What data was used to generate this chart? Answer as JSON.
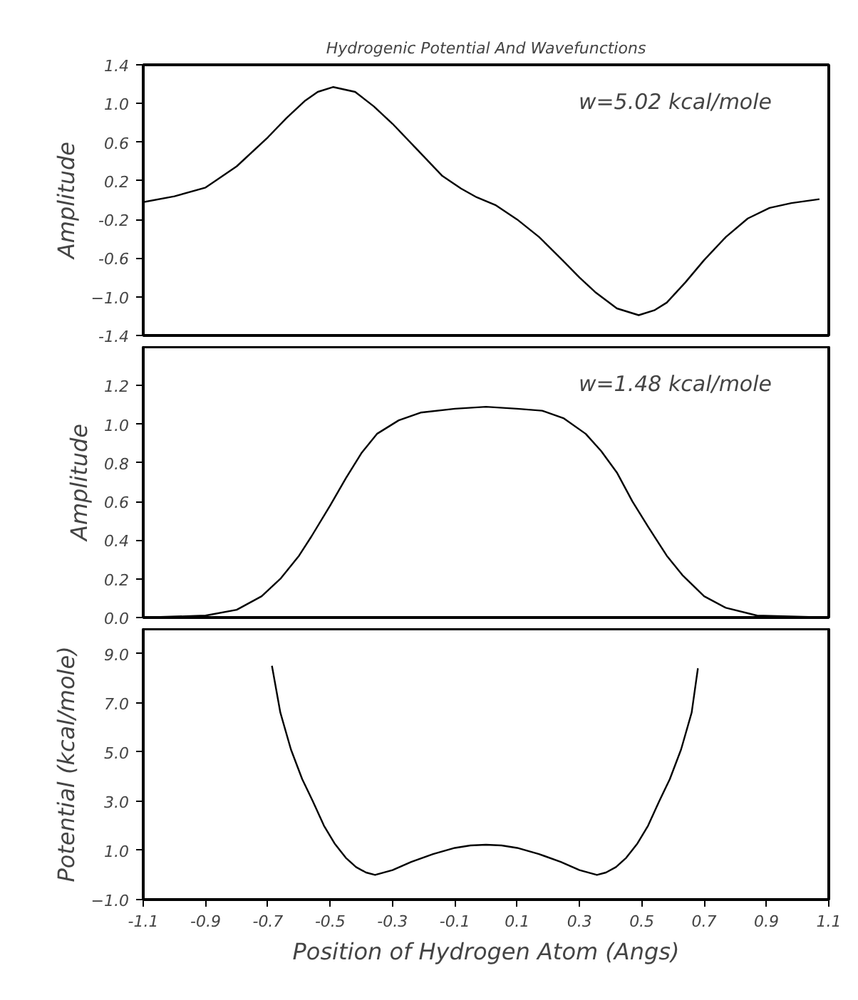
{
  "chart_data": [
    {
      "type": "line",
      "title": "Hydrogenic Potential And Wavefunctions",
      "ylabel": "Amplitude",
      "annotations": [
        "w=5.02 kcal/mole"
      ],
      "tick_labels": "y",
      "xlim": [
        -1.1,
        1.1
      ],
      "ylim": [
        -1.4,
        1.4
      ],
      "yticks": [
        -1.4,
        {
          "value": -1.0,
          "label": "−1.0"
        },
        -0.6,
        -0.2,
        0.2,
        0.6,
        {
          "value": 1.0,
          "label": "1.0"
        },
        1.4
      ],
      "x": [
        -1.1,
        -1.0,
        -0.9,
        -0.8,
        -0.7,
        -0.64,
        -0.58,
        -0.54,
        -0.49,
        -0.42,
        -0.36,
        -0.3,
        -0.22,
        -0.14,
        -0.08,
        -0.03,
        0.03,
        0.1,
        0.17,
        0.245,
        0.3,
        0.35,
        0.42,
        0.49,
        0.54,
        0.58,
        0.64,
        0.7,
        0.77,
        0.84,
        0.91,
        0.98,
        1.07
      ],
      "values": [
        -0.02,
        0.04,
        0.13,
        0.35,
        0.65,
        0.85,
        1.03,
        1.12,
        1.17,
        1.12,
        0.97,
        0.79,
        0.52,
        0.25,
        0.12,
        0.03,
        -0.05,
        -0.2,
        -0.38,
        -0.62,
        -0.8,
        -0.95,
        -1.12,
        -1.19,
        -1.14,
        -1.06,
        -0.85,
        -0.62,
        -0.38,
        -0.19,
        -0.08,
        -0.03,
        0.01
      ]
    },
    {
      "type": "line",
      "ylabel": "Amplitude",
      "annotations": [
        "w=1.48 kcal/mole"
      ],
      "tick_labels": "y",
      "xlim": [
        -1.1,
        1.1
      ],
      "ylim": [
        0.0,
        1.4
      ],
      "yticks": [
        {
          "value": 0.0,
          "label": "0.0"
        },
        0.2,
        0.4,
        0.6,
        0.8,
        {
          "value": 1.0,
          "label": "1.0"
        },
        1.2
      ],
      "x": [
        -1.1,
        -0.9,
        -0.8,
        -0.72,
        -0.66,
        -0.6,
        -0.56,
        -0.5,
        -0.45,
        -0.4,
        -0.35,
        -0.28,
        -0.21,
        -0.1,
        0.0,
        0.1,
        0.18,
        0.25,
        0.32,
        0.37,
        0.42,
        0.47,
        0.52,
        0.58,
        0.63,
        0.7,
        0.77,
        0.87,
        1.1
      ],
      "values": [
        0.0,
        0.01,
        0.04,
        0.11,
        0.2,
        0.32,
        0.42,
        0.58,
        0.72,
        0.85,
        0.95,
        1.02,
        1.06,
        1.08,
        1.09,
        1.08,
        1.07,
        1.03,
        0.95,
        0.86,
        0.75,
        0.6,
        0.47,
        0.32,
        0.22,
        0.11,
        0.05,
        0.01,
        0.0
      ]
    },
    {
      "type": "line",
      "ylabel": "Potential (kcal/mole)",
      "xlabel": "Position of Hydrogen Atom (Angs)",
      "xlim": [
        -1.1,
        1.1
      ],
      "ylim": [
        -1.0,
        10.0
      ],
      "xticks": [
        -1.1,
        -0.9,
        -0.7,
        -0.5,
        -0.3,
        -0.1,
        0.1,
        0.3,
        0.5,
        0.7,
        0.9,
        1.1
      ],
      "yticks": [
        {
          "value": -1.0,
          "label": "−1.0"
        },
        {
          "value": 1.0,
          "label": "1.0"
        },
        {
          "value": 3.0,
          "label": "3.0"
        },
        {
          "value": 5.0,
          "label": "5.0"
        },
        {
          "value": 7.0,
          "label": "7.0"
        },
        {
          "value": 9.0,
          "label": "9.0"
        }
      ],
      "x": [
        -0.687,
        -0.66,
        -0.626,
        -0.59,
        -0.556,
        -0.52,
        -0.486,
        -0.45,
        -0.417,
        -0.385,
        -0.356,
        -0.3,
        -0.24,
        -0.17,
        -0.1,
        -0.05,
        0.0,
        0.05,
        0.1,
        0.17,
        0.24,
        0.3,
        0.356,
        0.385,
        0.417,
        0.45,
        0.486,
        0.52,
        0.556,
        0.59,
        0.626,
        0.66,
        0.68
      ],
      "values": [
        8.5,
        6.6,
        5.1,
        3.9,
        3.0,
        2.0,
        1.28,
        0.7,
        0.32,
        0.1,
        0.0,
        0.2,
        0.53,
        0.85,
        1.1,
        1.2,
        1.23,
        1.2,
        1.1,
        0.85,
        0.53,
        0.2,
        0.0,
        0.1,
        0.32,
        0.7,
        1.28,
        2.0,
        3.0,
        3.9,
        5.1,
        6.6,
        8.4
      ]
    }
  ]
}
